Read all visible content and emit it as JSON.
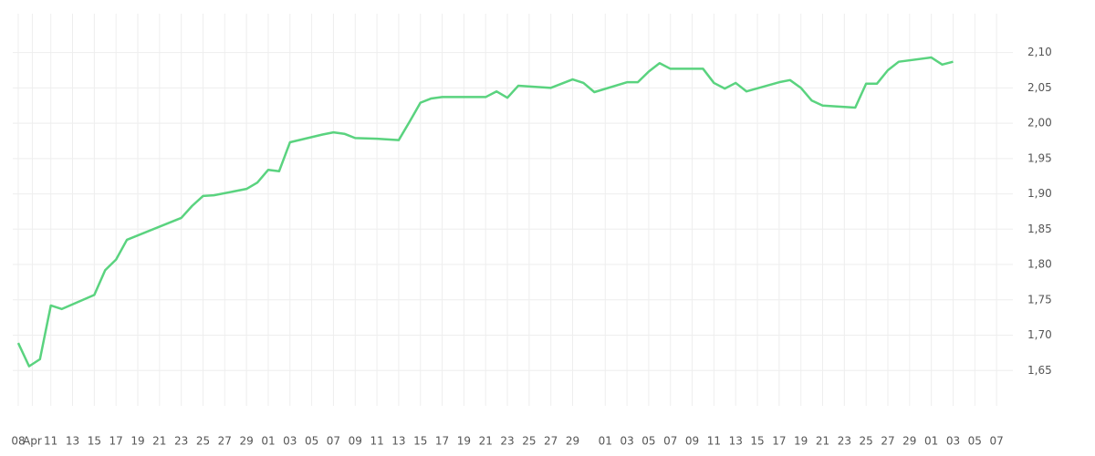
{
  "chart_data": {
    "type": "line",
    "xlim": [
      -0.5,
      91.5
    ],
    "xticks": [
      {
        "value": 0,
        "label": "08"
      },
      {
        "value": 1.3,
        "label": "Apr"
      },
      {
        "value": 3,
        "label": "11"
      },
      {
        "value": 5,
        "label": "13"
      },
      {
        "value": 7,
        "label": "15"
      },
      {
        "value": 9,
        "label": "17"
      },
      {
        "value": 11,
        "label": "19"
      },
      {
        "value": 13,
        "label": "21"
      },
      {
        "value": 15,
        "label": "23"
      },
      {
        "value": 17,
        "label": "25"
      },
      {
        "value": 19,
        "label": "27"
      },
      {
        "value": 21,
        "label": "29"
      },
      {
        "value": 23,
        "label": "01"
      },
      {
        "value": 25,
        "label": "03"
      },
      {
        "value": 27,
        "label": "05"
      },
      {
        "value": 29,
        "label": "07"
      },
      {
        "value": 31,
        "label": "09"
      },
      {
        "value": 33,
        "label": "11"
      },
      {
        "value": 35,
        "label": "13"
      },
      {
        "value": 37,
        "label": "15"
      },
      {
        "value": 39,
        "label": "17"
      },
      {
        "value": 41,
        "label": "19"
      },
      {
        "value": 43,
        "label": "21"
      },
      {
        "value": 45,
        "label": "23"
      },
      {
        "value": 47,
        "label": "25"
      },
      {
        "value": 49,
        "label": "27"
      },
      {
        "value": 51,
        "label": "29"
      },
      {
        "value": 54,
        "label": "01"
      },
      {
        "value": 56,
        "label": "03"
      },
      {
        "value": 58,
        "label": "05"
      },
      {
        "value": 60,
        "label": "07"
      },
      {
        "value": 62,
        "label": "09"
      },
      {
        "value": 64,
        "label": "11"
      },
      {
        "value": 66,
        "label": "13"
      },
      {
        "value": 68,
        "label": "15"
      },
      {
        "value": 70,
        "label": "17"
      },
      {
        "value": 72,
        "label": "19"
      },
      {
        "value": 74,
        "label": "21"
      },
      {
        "value": 76,
        "label": "23"
      },
      {
        "value": 78,
        "label": "25"
      },
      {
        "value": 80,
        "label": "27"
      },
      {
        "value": 82,
        "label": "29"
      },
      {
        "value": 84,
        "label": "01"
      },
      {
        "value": 86,
        "label": "03"
      },
      {
        "value": 88,
        "label": "05"
      },
      {
        "value": 90,
        "label": "07"
      }
    ],
    "ylim": [
      1.6,
      2.155
    ],
    "yticks": [
      {
        "value": 1.65,
        "label": "1,65"
      },
      {
        "value": 1.7,
        "label": "1,70"
      },
      {
        "value": 1.75,
        "label": "1,75"
      },
      {
        "value": 1.8,
        "label": "1,80"
      },
      {
        "value": 1.85,
        "label": "1,85"
      },
      {
        "value": 1.9,
        "label": "1,90"
      },
      {
        "value": 1.95,
        "label": "1,95"
      },
      {
        "value": 2.0,
        "label": "2,00"
      },
      {
        "value": 2.05,
        "label": "2,05"
      },
      {
        "value": 2.1,
        "label": "2,10"
      }
    ],
    "grid": true,
    "series": [
      {
        "color": "#5ad37f",
        "x": [
          0,
          1,
          2,
          3,
          4,
          7,
          8,
          9,
          10,
          15,
          16,
          17,
          18,
          21,
          22,
          23,
          24,
          25,
          28,
          29,
          30,
          31,
          33,
          35,
          36,
          37,
          38,
          39,
          43,
          44,
          45,
          46,
          49,
          51,
          52,
          53,
          56,
          57,
          58,
          59,
          60,
          63,
          64,
          65,
          66,
          67,
          70,
          71,
          72,
          73,
          74,
          77,
          78,
          79,
          80,
          81,
          84,
          85,
          86
        ],
        "values": [
          1.689,
          1.656,
          1.666,
          1.742,
          1.737,
          1.757,
          1.792,
          1.807,
          1.835,
          1.866,
          1.883,
          1.897,
          1.898,
          1.907,
          1.916,
          1.934,
          1.932,
          1.973,
          1.984,
          1.987,
          1.985,
          1.979,
          1.978,
          1.976,
          2.002,
          2.029,
          2.035,
          2.037,
          2.037,
          2.045,
          2.036,
          2.053,
          2.05,
          2.062,
          2.057,
          2.044,
          2.058,
          2.058,
          2.073,
          2.085,
          2.077,
          2.077,
          2.057,
          2.049,
          2.057,
          2.045,
          2.058,
          2.061,
          2.05,
          2.032,
          2.025,
          2.022,
          2.056,
          2.056,
          2.075,
          2.087,
          2.093,
          2.083,
          2.087
        ]
      }
    ]
  }
}
